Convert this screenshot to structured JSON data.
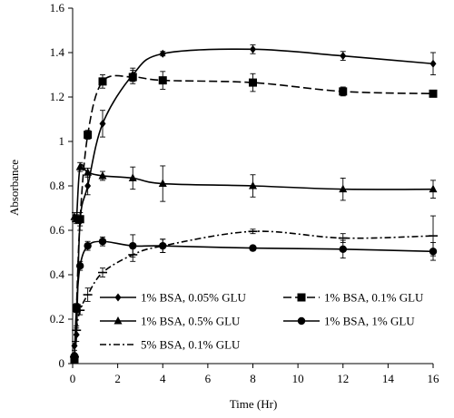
{
  "chart_data": {
    "type": "line",
    "title": "",
    "xlabel": "Time (Hr)",
    "ylabel": "Absorbance",
    "xlim": [
      0,
      16
    ],
    "ylim": [
      0,
      1.6
    ],
    "x_ticks": [
      "0",
      "2",
      "4",
      "6",
      "8",
      "10",
      "12",
      "14",
      "16"
    ],
    "y_ticks": [
      "0",
      "0.2",
      "0.4",
      "0.6",
      "0.8",
      "1",
      "1.2",
      "1.4",
      "1.6"
    ],
    "grid": false,
    "legend_position": "lower-center",
    "series": [
      {
        "name": "1% BSA, 0.05% GLU",
        "marker": "diamond",
        "line": "solid",
        "x": [
          0.08,
          0.17,
          0.33,
          0.67,
          1.33,
          2.67,
          4,
          8,
          12,
          16
        ],
        "y": [
          0.08,
          0.13,
          0.64,
          0.8,
          1.08,
          1.3,
          1.395,
          1.415,
          1.385,
          1.35
        ],
        "err": [
          0.02,
          0.03,
          0.04,
          0.04,
          0.06,
          0.03,
          0.01,
          0.02,
          0.02,
          0.05
        ]
      },
      {
        "name": "1% BSA, 0.1% GLU",
        "marker": "square",
        "line": "dashed",
        "x": [
          0.08,
          0.17,
          0.33,
          0.67,
          1.33,
          2.67,
          4,
          8,
          12,
          16
        ],
        "y": [
          0.02,
          0.25,
          0.65,
          1.03,
          1.27,
          1.29,
          1.275,
          1.265,
          1.225,
          1.215
        ],
        "err": [
          0.01,
          0.02,
          0.03,
          0.02,
          0.03,
          0.03,
          0.04,
          0.04,
          0.02,
          0.01
        ]
      },
      {
        "name": "1% BSA, 0.5% GLU",
        "marker": "triangle",
        "line": "solid",
        "x": [
          0.08,
          0.17,
          0.33,
          0.67,
          1.33,
          2.67,
          4,
          8,
          12,
          16
        ],
        "y": [
          0.66,
          0.65,
          0.885,
          0.86,
          0.845,
          0.835,
          0.81,
          0.8,
          0.785,
          0.785
        ],
        "err": [
          0.02,
          0.02,
          0.02,
          0.02,
          0.02,
          0.05,
          0.08,
          0.05,
          0.05,
          0.04
        ]
      },
      {
        "name": "1% BSA, 1% GLU",
        "marker": "circle",
        "line": "solid",
        "x": [
          0.08,
          0.17,
          0.33,
          0.67,
          1.33,
          2.67,
          4,
          8,
          12,
          16
        ],
        "y": [
          0.035,
          0.25,
          0.44,
          0.53,
          0.55,
          0.53,
          0.53,
          0.52,
          0.515,
          0.505
        ],
        "err": [
          0.01,
          0.02,
          0.02,
          0.02,
          0.02,
          0.05,
          0.03,
          0.01,
          0.04,
          0.04
        ]
      },
      {
        "name": "5% BSA, 0.1% GLU",
        "marker": "dash",
        "line": "dashdot",
        "x": [
          0.08,
          0.17,
          0.33,
          0.67,
          1.33,
          2.67,
          4,
          8,
          12,
          16
        ],
        "y": [
          0.03,
          0.15,
          0.24,
          0.31,
          0.41,
          0.49,
          0.53,
          0.595,
          0.565,
          0.575
        ],
        "err": [
          0.01,
          0.02,
          0.02,
          0.03,
          0.02,
          0.03,
          0.03,
          0.01,
          0.02,
          0.09
        ]
      }
    ]
  }
}
